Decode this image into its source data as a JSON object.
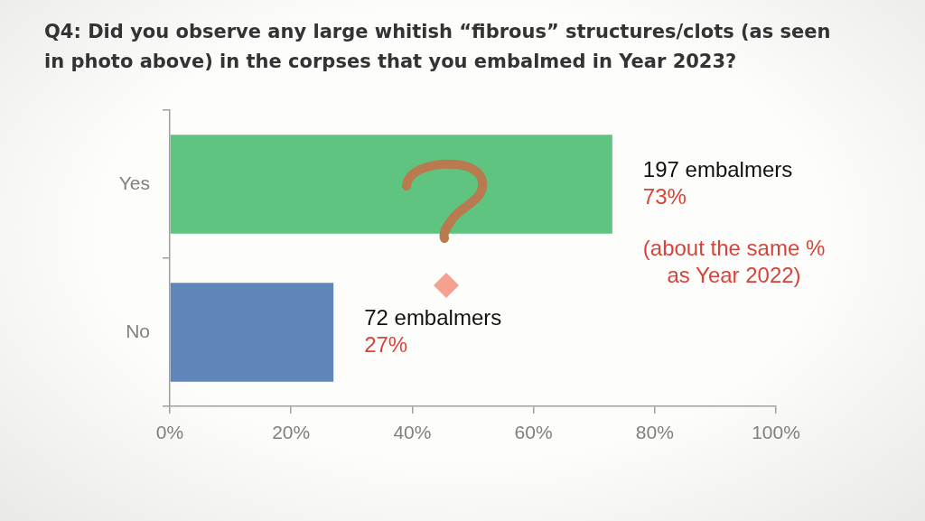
{
  "chart_data": {
    "type": "bar",
    "orientation": "horizontal",
    "title": "Q4: Did you observe any large whitish “fibrous” structures/clots (as seen in photo above) in the corpses that you embalmed in Year 2023?",
    "categories": [
      "Yes",
      "No"
    ],
    "values": [
      73,
      27
    ],
    "colors": [
      "#5ec47f",
      "#5f86b8"
    ],
    "value_labels": [
      "197 embalmers\n73%",
      "72 embalmers\n27%"
    ],
    "xlim": [
      0,
      100
    ],
    "xticks": [
      {
        "value": 0,
        "label": "0%"
      },
      {
        "value": 20,
        "label": "20%"
      },
      {
        "value": 40,
        "label": "40%"
      },
      {
        "value": 60,
        "label": "60%"
      },
      {
        "value": 80,
        "label": "80%"
      },
      {
        "value": 100,
        "label": "100%"
      }
    ],
    "annotations": [
      "(about the same %\nas Year 2022)"
    ]
  }
}
